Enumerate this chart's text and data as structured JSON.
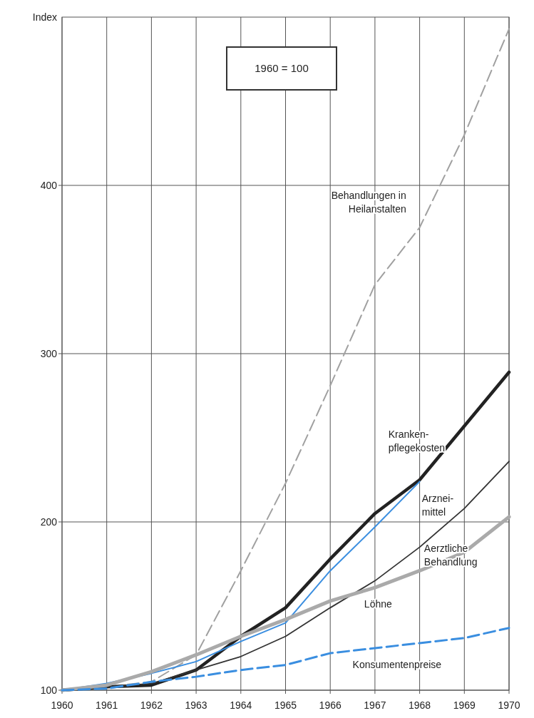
{
  "chart_data": {
    "type": "line",
    "ylabel": "Index",
    "annotations": [
      "1960 = 100"
    ],
    "x": [
      1960,
      1961,
      1962,
      1963,
      1964,
      1965,
      1966,
      1967,
      1968,
      1969,
      1970
    ],
    "xlim": [
      1960,
      1970
    ],
    "xticks": [
      1960,
      1961,
      1962,
      1963,
      1964,
      1965,
      1966,
      1967,
      1968,
      1969,
      1970
    ],
    "ylim": [
      100,
      500
    ],
    "yticks": [
      100,
      200,
      300,
      400
    ],
    "grid": true,
    "marker": "none",
    "series": [
      {
        "name": "Behandlungen in Heilanstalten",
        "color": "#a0a0a0",
        "line_style": "dashed",
        "values": [
          100,
          102,
          105,
          121,
          171,
          223,
          281,
          341,
          375,
          430,
          493
        ]
      },
      {
        "name": "Kranken- pflegekosten",
        "color": "#222222",
        "values": [
          100,
          102,
          103,
          112,
          132,
          149,
          178,
          205,
          225,
          257,
          289
        ]
      },
      {
        "name": "Arznei- mittel",
        "color": "#3a8ee0",
        "values": [
          100,
          104,
          110,
          117,
          129,
          140,
          171,
          197,
          224,
          null,
          null
        ]
      },
      {
        "name": "Aerztliche Behandlung",
        "color": "#333333",
        "values": [
          100,
          102,
          104,
          112,
          120,
          132,
          149,
          165,
          185,
          208,
          236
        ]
      },
      {
        "name": "Löhne",
        "color": "#aaaaaa",
        "values": [
          100,
          103,
          111,
          121,
          132,
          142,
          153,
          161,
          171,
          182,
          203
        ]
      },
      {
        "name": "Konsumentenpreise",
        "color": "#3a8ee0",
        "line_style": "dashed",
        "values": [
          100,
          101,
          105,
          108,
          112,
          115,
          122,
          125,
          128,
          131,
          137
        ]
      }
    ]
  }
}
